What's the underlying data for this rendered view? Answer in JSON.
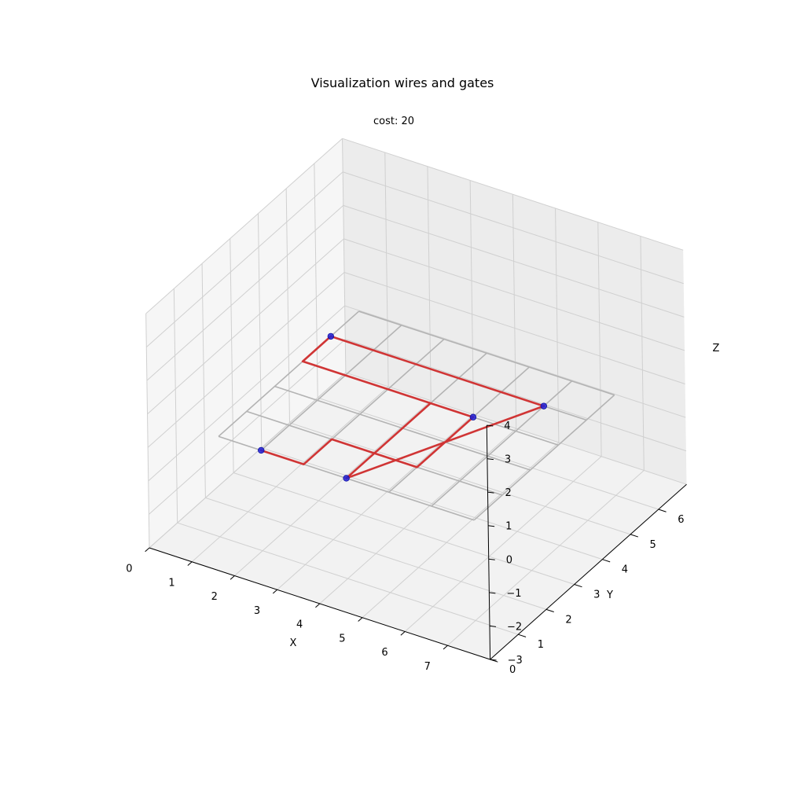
{
  "chart_data": {
    "type": "line3d",
    "title": "Visualization wires and gates",
    "subtitle": "cost: 20",
    "xlabel": "X",
    "ylabel": "Y",
    "zlabel": "Z",
    "xlim": [
      0,
      8
    ],
    "ylim": [
      0,
      7
    ],
    "zlim": [
      -3,
      4
    ],
    "xticks": [
      0,
      1,
      2,
      3,
      4,
      5,
      6,
      7
    ],
    "yticks": [
      0,
      1,
      2,
      3,
      4,
      5,
      6
    ],
    "zticks": [
      -3,
      -2,
      -1,
      0,
      1,
      2,
      3,
      4
    ],
    "grid": true,
    "board": {
      "x": [
        1,
        7
      ],
      "y": [
        1,
        6
      ],
      "z": 0
    },
    "gates": [
      {
        "x": 1,
        "y": 5,
        "z": 0
      },
      {
        "x": 2,
        "y": 1,
        "z": 0
      },
      {
        "x": 4,
        "y": 1,
        "z": 0
      },
      {
        "x": 5,
        "y": 4,
        "z": 0
      },
      {
        "x": 6,
        "y": 5,
        "z": 0
      }
    ],
    "wires": [
      {
        "path": [
          [
            1,
            5,
            0
          ],
          [
            6,
            5,
            0
          ]
        ]
      },
      {
        "path": [
          [
            1,
            5,
            0
          ],
          [
            1,
            4,
            0
          ],
          [
            4,
            4,
            0
          ],
          [
            4,
            1,
            0
          ]
        ]
      },
      {
        "path": [
          [
            6,
            5,
            0
          ],
          [
            4,
            1,
            0
          ]
        ]
      },
      {
        "path": [
          [
            2,
            1,
            0
          ],
          [
            3,
            1,
            0
          ],
          [
            3,
            2,
            0
          ],
          [
            5,
            2,
            0
          ],
          [
            5,
            4,
            0
          ]
        ]
      },
      {
        "path": [
          [
            4,
            4,
            0
          ],
          [
            5,
            4,
            0
          ]
        ]
      }
    ],
    "colors": {
      "wire": "#d03535",
      "gate": "#1f1fd6",
      "board_grid": "#b3b3b3",
      "pane_grid": "#d0d0d0"
    }
  }
}
